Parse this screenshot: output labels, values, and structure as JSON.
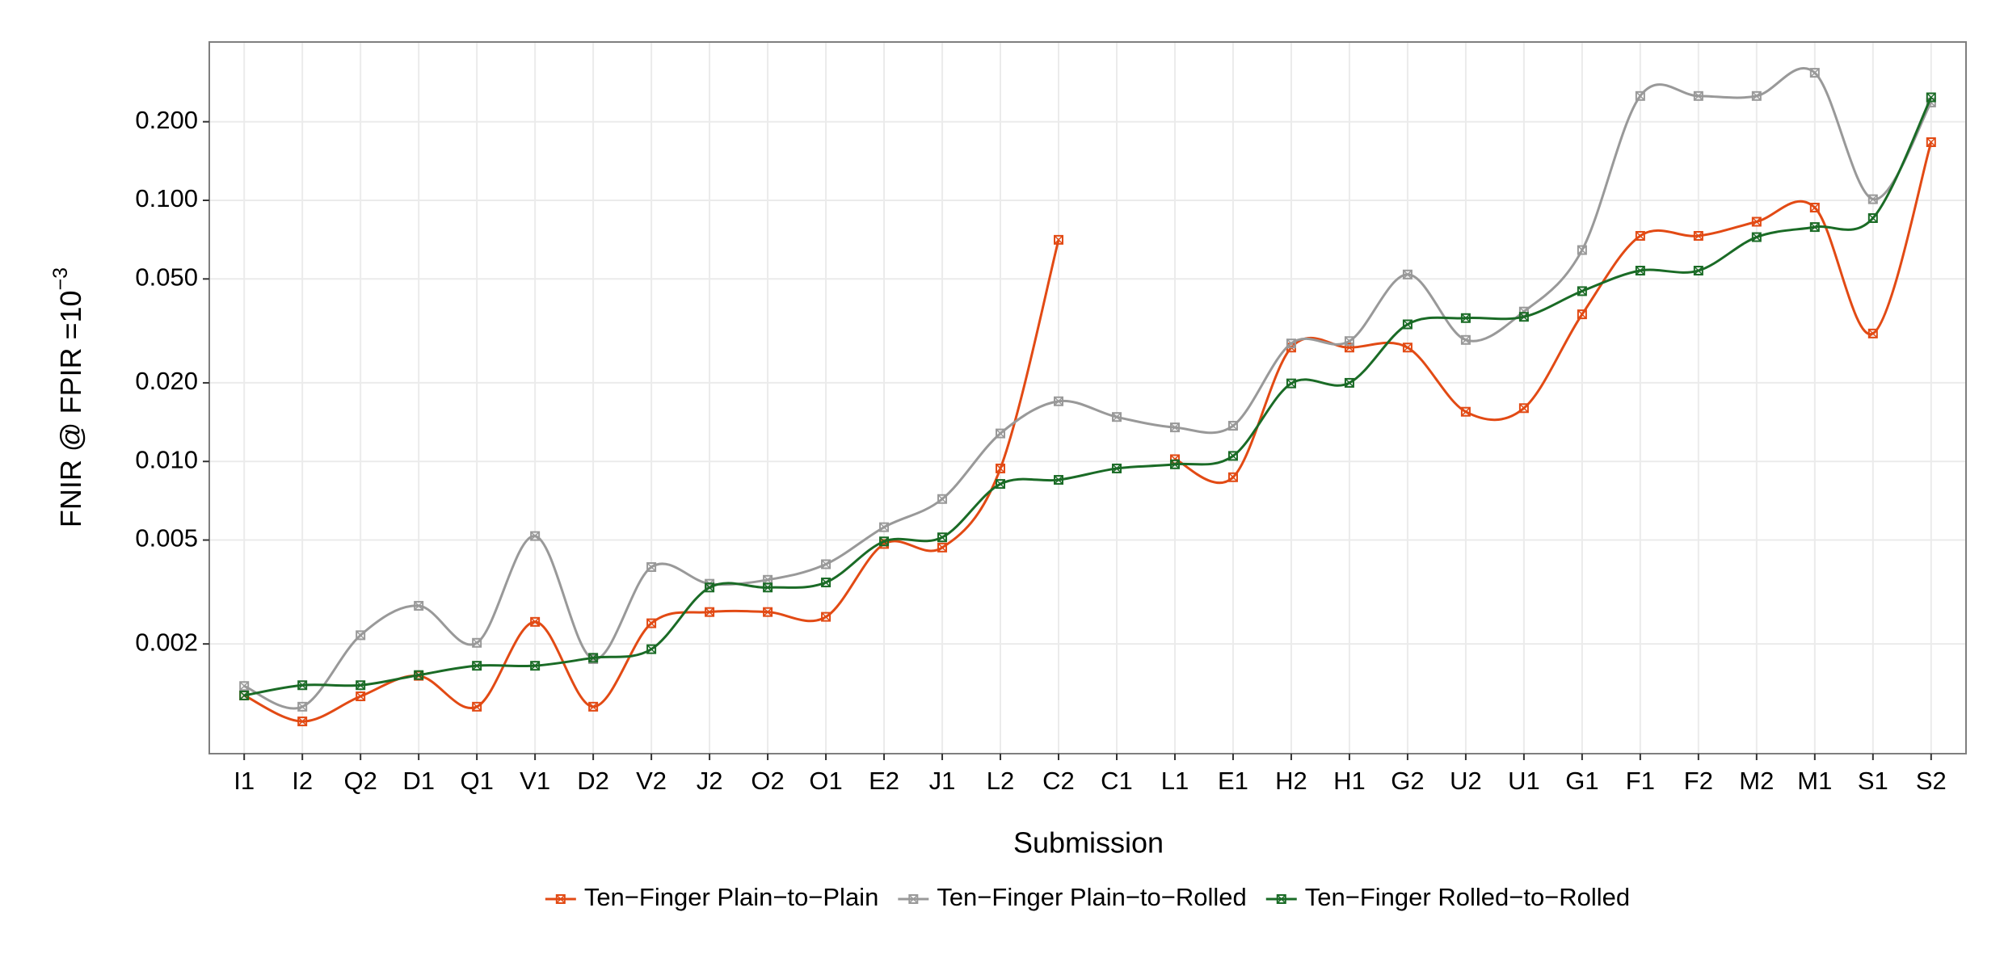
{
  "chart_data": {
    "type": "line",
    "y_label": "FNIR @ FPIR =10",
    "y_label_superscript": "−3",
    "x_label": "Submission",
    "log_y": true,
    "grid": true,
    "legend_position": "bottom",
    "categories": [
      "I1",
      "I2",
      "Q2",
      "D1",
      "Q1",
      "V1",
      "D2",
      "V2",
      "J2",
      "O2",
      "O1",
      "E2",
      "J1",
      "L2",
      "C2",
      "C1",
      "L1",
      "E1",
      "H2",
      "H1",
      "G2",
      "U2",
      "U1",
      "G1",
      "F1",
      "F2",
      "M2",
      "M1",
      "S1",
      "S2"
    ],
    "ylim": [
      0.00076,
      0.404
    ],
    "yticks": [
      {
        "value": 0.002,
        "label": "0.002"
      },
      {
        "value": 0.005,
        "label": "0.005"
      },
      {
        "value": 0.01,
        "label": "0.010"
      },
      {
        "value": 0.02,
        "label": "0.020"
      },
      {
        "value": 0.05,
        "label": "0.050"
      },
      {
        "value": 0.1,
        "label": "0.100"
      },
      {
        "value": 0.2,
        "label": "0.200"
      }
    ],
    "series": [
      {
        "name": "Ten−Finger Plain−to−Plain",
        "color": "#e24a14",
        "values": [
          0.00127,
          0.00101,
          0.00126,
          0.00151,
          0.00115,
          0.00243,
          0.00115,
          0.0024,
          0.00265,
          0.00265,
          0.00254,
          0.00483,
          0.00468,
          0.0094,
          0.0706,
          null,
          0.0102,
          0.0087,
          0.0273,
          0.0273,
          0.0273,
          0.0155,
          0.016,
          0.0366,
          0.0731,
          0.0731,
          0.0828,
          0.0938,
          0.0309,
          0.167
        ]
      },
      {
        "name": "Ten−Finger Plain−to−Rolled",
        "color": "#999999",
        "values": [
          0.00138,
          0.00115,
          0.00216,
          0.0028,
          0.00202,
          0.00518,
          0.00175,
          0.00394,
          0.0034,
          0.00352,
          0.00404,
          0.0056,
          0.00718,
          0.0128,
          0.017,
          0.0148,
          0.0135,
          0.0137,
          0.0283,
          0.0289,
          0.052,
          0.0292,
          0.0375,
          0.0645,
          0.251,
          0.251,
          0.251,
          0.308,
          0.101,
          0.237
        ]
      },
      {
        "name": "Ten−Finger Rolled−to−Rolled",
        "color": "#1a6b26",
        "values": [
          0.00127,
          0.00139,
          0.00139,
          0.00152,
          0.00165,
          0.00165,
          0.00177,
          0.00191,
          0.00329,
          0.00329,
          0.00344,
          0.00494,
          0.00512,
          0.0082,
          0.0085,
          0.0094,
          0.00975,
          0.0105,
          0.0199,
          0.02,
          0.0335,
          0.0354,
          0.0358,
          0.0449,
          0.0538,
          0.0538,
          0.0723,
          0.079,
          0.0855,
          0.248
        ]
      }
    ]
  }
}
